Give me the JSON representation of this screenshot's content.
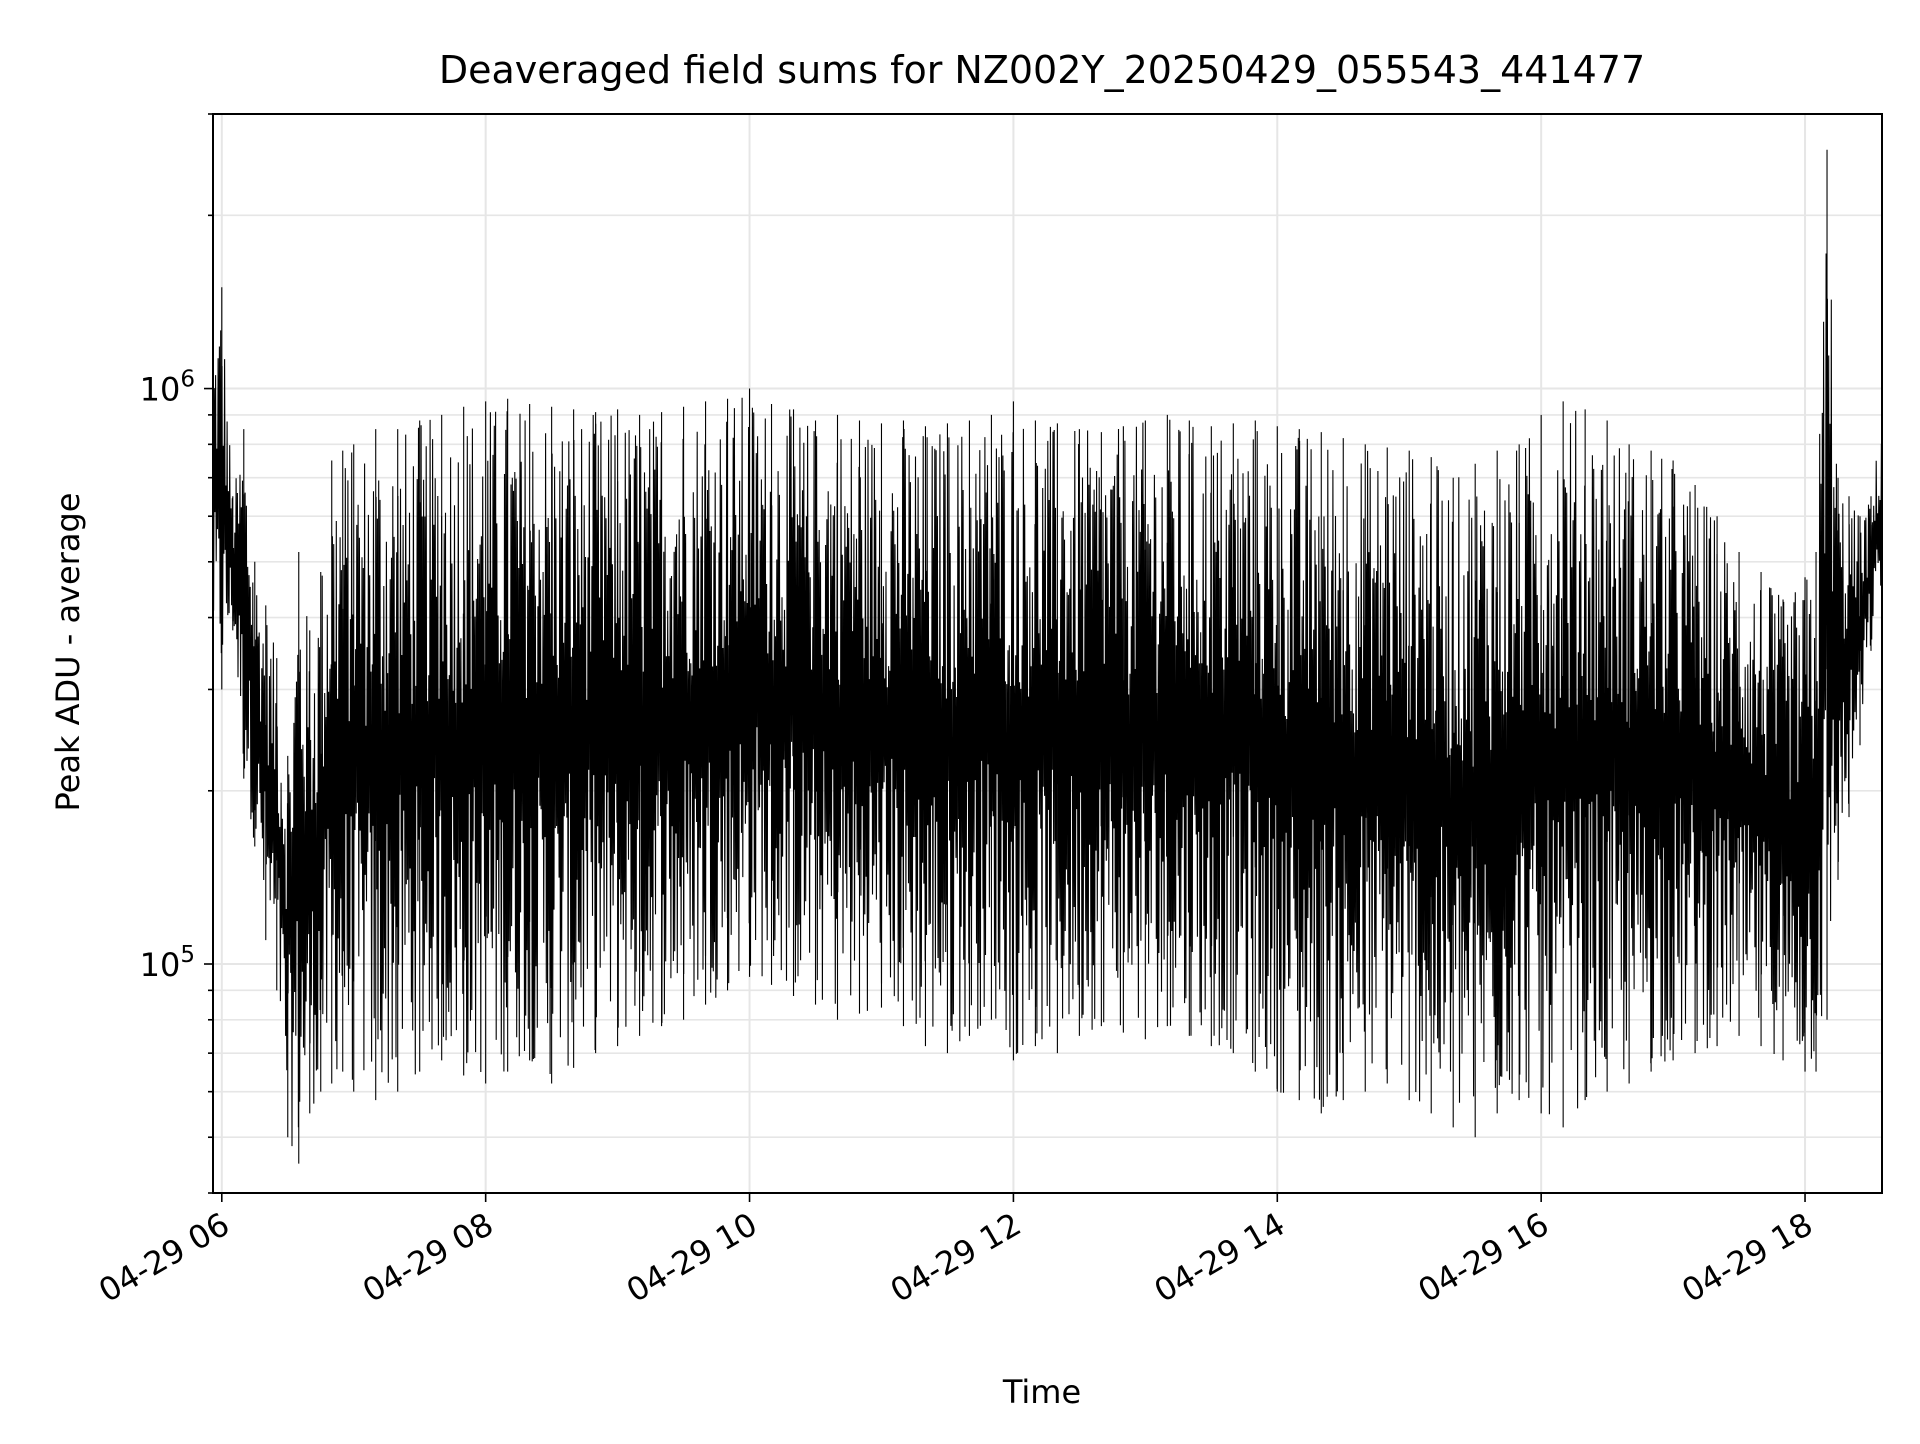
{
  "chart_data": {
    "type": "line",
    "title": "Deaveraged field sums for NZ002Y_20250429_055543_441477",
    "xlabel": "Time",
    "ylabel": "Peak ADU - average",
    "yscale": "log",
    "xlim": [
      "2025-04-29 05:56",
      "2025-04-29 18:35"
    ],
    "ylim": [
      40000,
      3000000
    ],
    "x_ticks": [
      {
        "value": "2025-04-29 06:00",
        "label": "04-29 06"
      },
      {
        "value": "2025-04-29 08:00",
        "label": "04-29 08"
      },
      {
        "value": "2025-04-29 10:00",
        "label": "04-29 10"
      },
      {
        "value": "2025-04-29 12:00",
        "label": "04-29 12"
      },
      {
        "value": "2025-04-29 14:00",
        "label": "04-29 14"
      },
      {
        "value": "2025-04-29 16:00",
        "label": "04-29 16"
      },
      {
        "value": "2025-04-29 18:00",
        "label": "04-29 18"
      }
    ],
    "y_ticks": [
      {
        "value": 100000,
        "label": "10",
        "exponent": "5"
      },
      {
        "value": 1000000,
        "label": "10",
        "exponent": "6"
      }
    ],
    "grid": true,
    "line_color": "#000000",
    "series": [
      {
        "x": [
          "2025-04-29 05:56",
          "2025-04-29 06:00",
          "2025-04-29 06:05",
          "2025-04-29 06:10",
          "2025-04-29 06:15",
          "2025-04-29 06:20",
          "2025-04-29 06:25",
          "2025-04-29 06:30",
          "2025-04-29 06:35",
          "2025-04-29 06:40",
          "2025-04-29 06:45",
          "2025-04-29 06:50",
          "2025-04-29 06:55",
          "2025-04-29 07:00",
          "2025-04-29 07:10",
          "2025-04-29 07:20",
          "2025-04-29 07:30",
          "2025-04-29 07:40",
          "2025-04-29 07:50",
          "2025-04-29 08:00",
          "2025-04-29 08:10",
          "2025-04-29 08:20",
          "2025-04-29 08:30",
          "2025-04-29 08:40",
          "2025-04-29 08:50",
          "2025-04-29 09:00",
          "2025-04-29 09:10",
          "2025-04-29 09:20",
          "2025-04-29 09:30",
          "2025-04-29 09:40",
          "2025-04-29 09:50",
          "2025-04-29 10:00",
          "2025-04-29 10:10",
          "2025-04-29 10:20",
          "2025-04-29 10:30",
          "2025-04-29 10:40",
          "2025-04-29 10:50",
          "2025-04-29 11:00",
          "2025-04-29 11:10",
          "2025-04-29 11:20",
          "2025-04-29 11:30",
          "2025-04-29 11:40",
          "2025-04-29 11:50",
          "2025-04-29 12:00",
          "2025-04-29 12:10",
          "2025-04-29 12:20",
          "2025-04-29 12:30",
          "2025-04-29 12:40",
          "2025-04-29 12:50",
          "2025-04-29 13:00",
          "2025-04-29 13:10",
          "2025-04-29 13:20",
          "2025-04-29 13:30",
          "2025-04-29 13:40",
          "2025-04-29 13:50",
          "2025-04-29 14:00",
          "2025-04-29 14:10",
          "2025-04-29 14:20",
          "2025-04-29 14:30",
          "2025-04-29 14:40",
          "2025-04-29 14:50",
          "2025-04-29 15:00",
          "2025-04-29 15:10",
          "2025-04-29 15:20",
          "2025-04-29 15:30",
          "2025-04-29 15:40",
          "2025-04-29 15:50",
          "2025-04-29 16:00",
          "2025-04-29 16:10",
          "2025-04-29 16:20",
          "2025-04-29 16:30",
          "2025-04-29 16:40",
          "2025-04-29 16:50",
          "2025-04-29 17:00",
          "2025-04-29 17:10",
          "2025-04-29 17:20",
          "2025-04-29 17:30",
          "2025-04-29 17:40",
          "2025-04-29 17:50",
          "2025-04-29 18:00",
          "2025-04-29 18:05",
          "2025-04-29 18:10",
          "2025-04-29 18:15",
          "2025-04-29 18:20",
          "2025-04-29 18:25",
          "2025-04-29 18:30",
          "2025-04-29 18:35"
        ],
        "high": [
          1200000,
          1500000,
          650000,
          850000,
          500000,
          420000,
          340000,
          230000,
          520000,
          380000,
          480000,
          750000,
          780000,
          800000,
          850000,
          850000,
          880000,
          900000,
          930000,
          950000,
          960000,
          940000,
          930000,
          920000,
          910000,
          920000,
          900000,
          910000,
          930000,
          950000,
          960000,
          1000000,
          940000,
          920000,
          880000,
          900000,
          880000,
          870000,
          880000,
          860000,
          870000,
          880000,
          900000,
          950000,
          880000,
          870000,
          850000,
          840000,
          860000,
          880000,
          900000,
          880000,
          860000,
          870000,
          880000,
          860000,
          850000,
          840000,
          820000,
          800000,
          790000,
          780000,
          760000,
          700000,
          740000,
          780000,
          800000,
          900000,
          950000,
          920000,
          880000,
          800000,
          780000,
          750000,
          680000,
          600000,
          520000,
          480000,
          430000,
          470000,
          520000,
          2600000,
          700000,
          650000,
          600000,
          650000,
          900000
        ],
        "low": [
          350000,
          300000,
          380000,
          210000,
          160000,
          110000,
          90000,
          50000,
          45000,
          55000,
          60000,
          62000,
          65000,
          60000,
          58000,
          60000,
          65000,
          68000,
          64000,
          62000,
          65000,
          68000,
          62000,
          66000,
          70000,
          72000,
          75000,
          78000,
          80000,
          85000,
          90000,
          95000,
          92000,
          88000,
          85000,
          80000,
          82000,
          84000,
          78000,
          72000,
          70000,
          75000,
          80000,
          68000,
          72000,
          70000,
          75000,
          78000,
          76000,
          74000,
          78000,
          75000,
          72000,
          70000,
          65000,
          60000,
          58000,
          55000,
          58000,
          60000,
          62000,
          58000,
          55000,
          52000,
          50000,
          55000,
          58000,
          55000,
          52000,
          58000,
          60000,
          62000,
          65000,
          68000,
          70000,
          72000,
          75000,
          72000,
          68000,
          65000,
          65000,
          80000,
          140000,
          180000,
          240000,
          350000,
          450000
        ]
      }
    ]
  }
}
